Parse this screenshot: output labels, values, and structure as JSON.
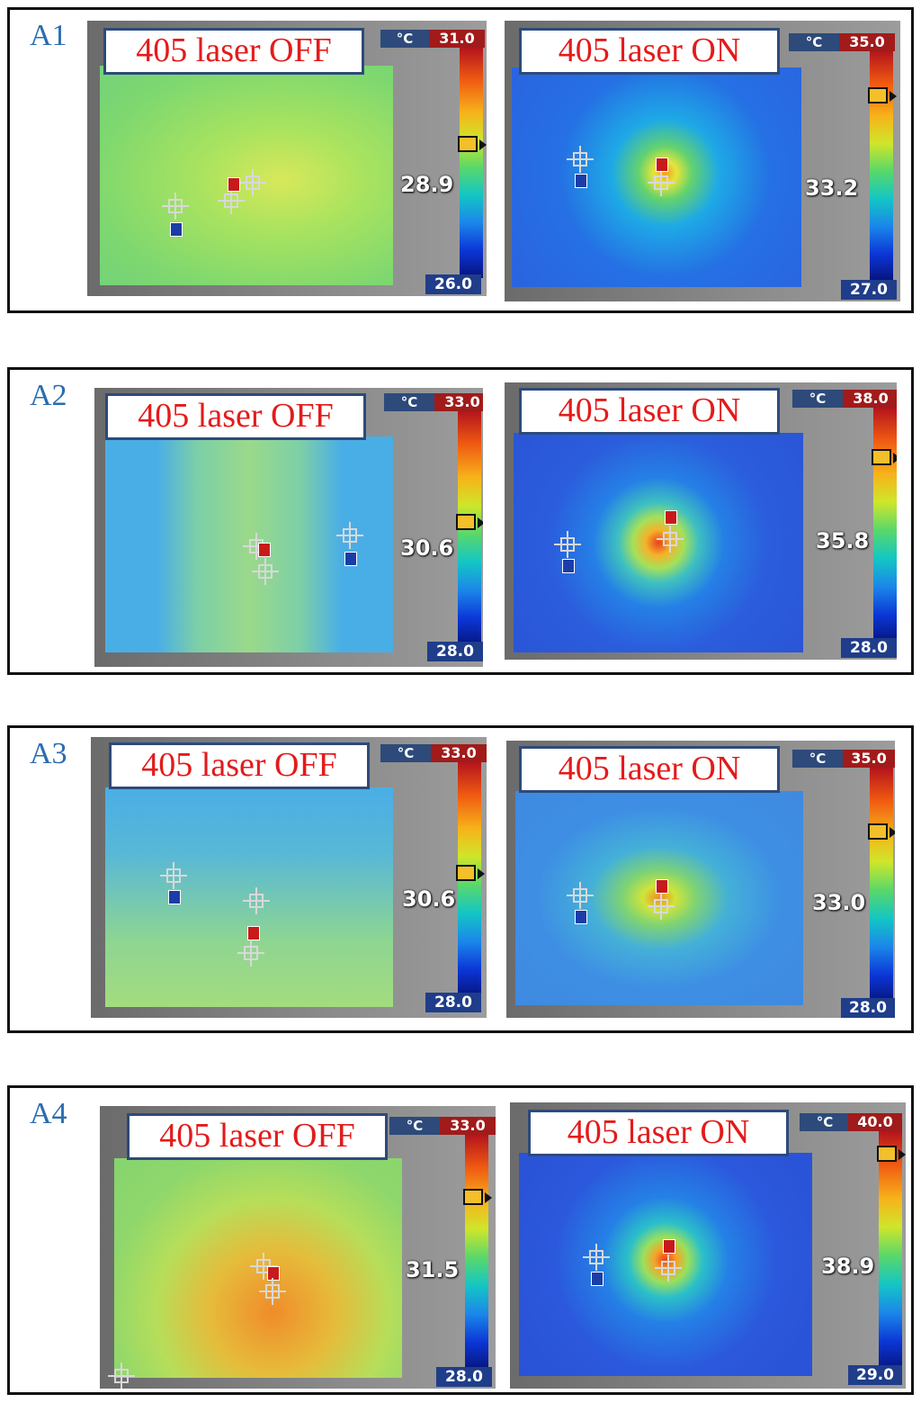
{
  "caption_off": "405 laser OFF",
  "caption_on": "405 laser ON",
  "unit": "°C",
  "rows": [
    {
      "label": "A1",
      "off": {
        "max": "31.0",
        "min": "26.0",
        "spot": "28.9"
      },
      "on": {
        "max": "35.0",
        "min": "27.0",
        "spot": "33.2"
      }
    },
    {
      "label": "A2",
      "off": {
        "max": "33.0",
        "min": "28.0",
        "spot": "30.6"
      },
      "on": {
        "max": "38.0",
        "min": "28.0",
        "spot": "35.8"
      }
    },
    {
      "label": "A3",
      "off": {
        "max": "33.0",
        "min": "28.0",
        "spot": "30.6"
      },
      "on": {
        "max": "35.0",
        "min": "28.0",
        "spot": "33.0"
      }
    },
    {
      "label": "A4",
      "off": {
        "max": "33.0",
        "min": "28.0",
        "spot": "31.5"
      },
      "on": {
        "max": "40.0",
        "min": "29.0",
        "spot": "38.9"
      }
    }
  ]
}
